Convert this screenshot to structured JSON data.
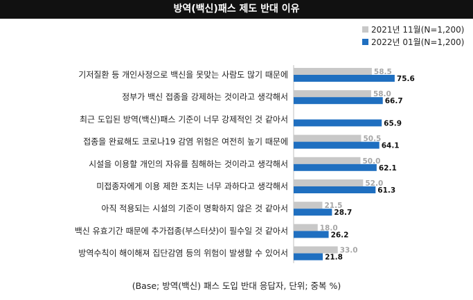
{
  "chart_data": {
    "type": "bar",
    "orientation": "horizontal",
    "title": "방역(백신)패스 제도 반대 이유",
    "categories": [
      "기저질환 등 개인사정으로 백신을 못맞는 사람도 많기 때문에",
      "정부가 백신 접종을 강제하는 것이라고 생각해서",
      "최근 도입된 방역(백신)패스 기준이 너무 강제적인 것 같아서",
      "접종을 완료해도 코로나19 감염 위험은 여전히 높기 때문에",
      "시설을 이용할 개인의 자유를 침해하는 것이라고 생각해서",
      "미접종자에게 이용 제한 조치는 너무 과하다고 생각해서",
      "아직 적용되는 시설의 기준이 명확하지 않은 것 같아서",
      "백신 유효기간 때문에 추가접종(부스터샷)이 필수일 것 같아서",
      "방역수칙이 해이해져 집단감염 등의 위험이 발생할 수 있어서"
    ],
    "series": [
      {
        "name": "2021년 11월(N=1,200)",
        "values": [
          58.5,
          58.0,
          null,
          50.5,
          50.0,
          52.0,
          21.5,
          18.0,
          33.0
        ],
        "labels": [
          "58.5",
          "58.0",
          "",
          "50.5",
          "50.0",
          "52.0",
          "21.5",
          "18.0",
          "33.0"
        ],
        "color": "#c8c8c8"
      },
      {
        "name": "2022년 01월(N=1,200)",
        "values": [
          75.6,
          66.7,
          65.9,
          64.1,
          62.1,
          61.3,
          28.7,
          26.2,
          21.8
        ],
        "labels": [
          "75.6",
          "66.7",
          "65.9",
          "64.1",
          "62.1",
          "61.3",
          "28.7",
          "26.2",
          "21.8"
        ],
        "color": "#1f6fc0"
      }
    ],
    "label_colors": [
      "#a6a6a6",
      "#111111"
    ],
    "axis_line_color": "#bfbfbf",
    "xlim": [
      0,
      80
    ],
    "grid": false,
    "legend_position": "top-right"
  },
  "footnote": "(Base; 방역(백신) 패스 도입 반대 응답자, 단위; 중복 %)"
}
